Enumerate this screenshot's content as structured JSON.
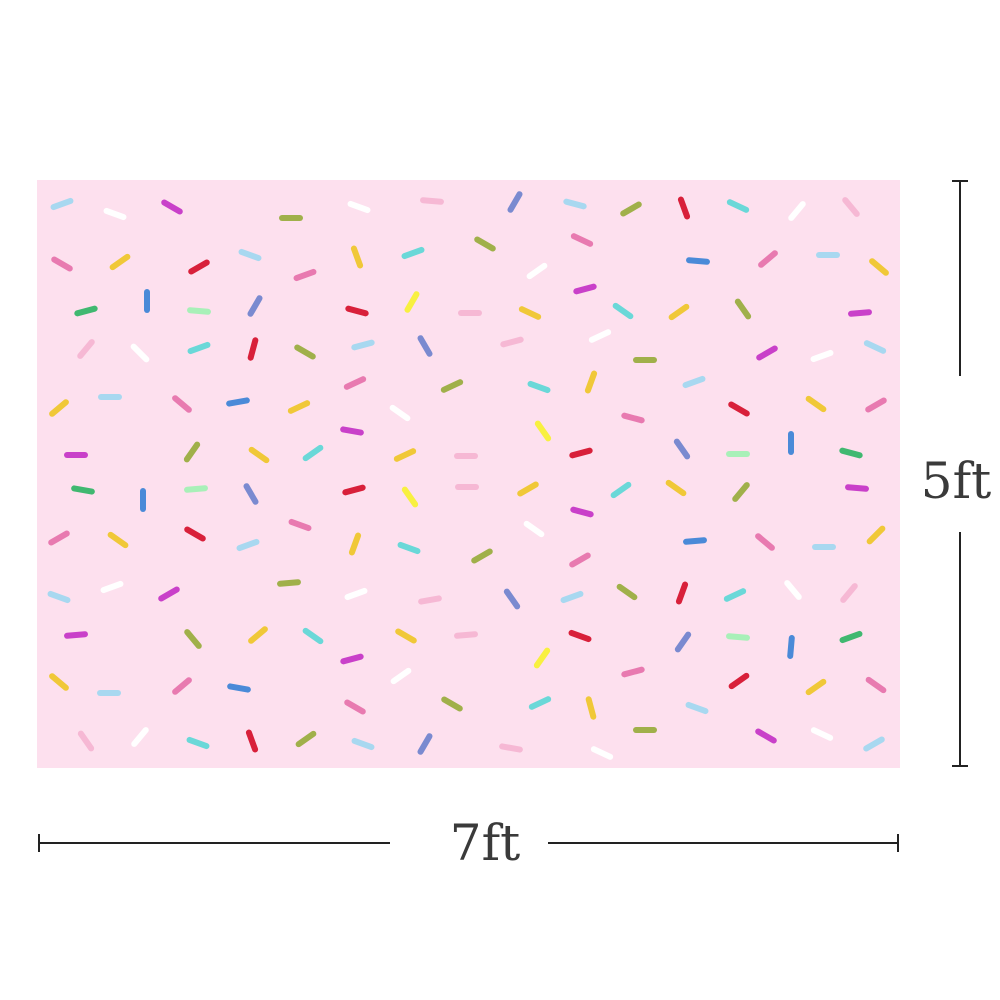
{
  "backdrop": {
    "background_color": "#fde0ee",
    "sprinkle_palette": [
      "#a8d8f0",
      "#ffffff",
      "#c940c9",
      "#a0b04a",
      "#f6b8d4",
      "#7a8ad0",
      "#d8203a",
      "#6ad8d8",
      "#e87ab0",
      "#f0c838",
      "#4a8ad8",
      "#40b870",
      "#a8f0b8",
      "#f8f040"
    ],
    "pattern": "confetti-sprinkles"
  },
  "dimensions": {
    "width_label": "7ft",
    "height_label": "5ft",
    "line_color": "#222222",
    "label_color": "#3a3a3a"
  }
}
